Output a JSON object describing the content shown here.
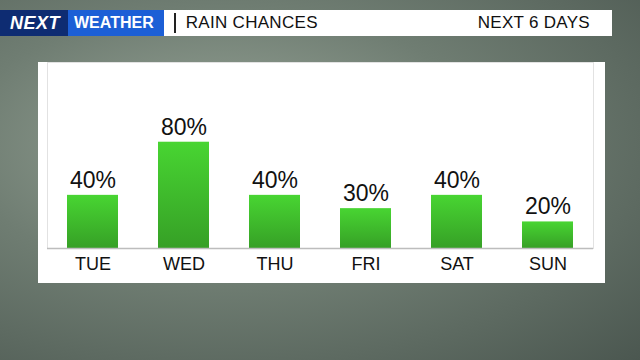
{
  "chart_data": {
    "type": "bar",
    "logo": {
      "mark": "NEXT",
      "text": "WEATHER"
    },
    "title": "RAIN CHANCES",
    "subtitle": "NEXT 6 DAYS",
    "categories": [
      "TUE",
      "WED",
      "THU",
      "FRI",
      "SAT",
      "SUN"
    ],
    "values": [
      40,
      80,
      40,
      30,
      40,
      20
    ],
    "value_labels": [
      "40%",
      "80%",
      "40%",
      "30%",
      "40%",
      "20%"
    ],
    "color": "#3db52b",
    "ylim": [
      0,
      140
    ],
    "data_labels": true,
    "tick_labels": "x"
  }
}
